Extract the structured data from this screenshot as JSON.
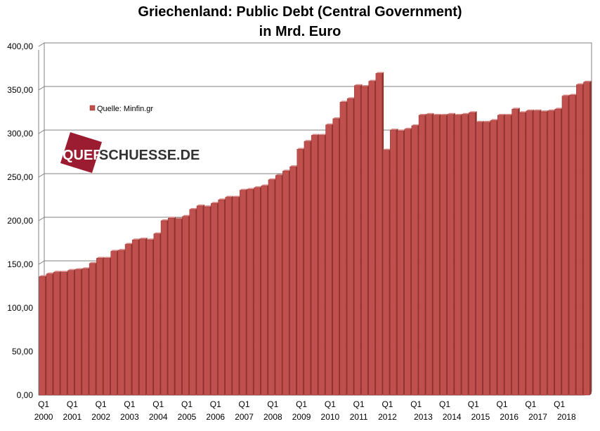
{
  "chart_data": {
    "type": "bar",
    "title": "Griechenland: Public Debt (Central Government)",
    "subtitle": "in Mrd. Euro",
    "xlabel": "",
    "ylabel": "",
    "ylim": [
      0,
      400
    ],
    "yticks": [
      "0,00",
      "50,00",
      "100,00",
      "150,00",
      "200,00",
      "250,00",
      "300,00",
      "350,00",
      "400,00"
    ],
    "grid": true,
    "legend_position": "top-left",
    "series": [
      {
        "name": "Quelle: Minfin.gr",
        "color": "#c0504d",
        "values": [
          136,
          139,
          141,
          141,
          143,
          144,
          145,
          151,
          157,
          157,
          165,
          166,
          173,
          178,
          179,
          178,
          185,
          200,
          203,
          202,
          205,
          213,
          217,
          216,
          220,
          224,
          227,
          227,
          235,
          236,
          238,
          240,
          247,
          252,
          257,
          262,
          282,
          291,
          298,
          298,
          310,
          317,
          336,
          340,
          355,
          354,
          360,
          369,
          281,
          304,
          303,
          305,
          309,
          321,
          322,
          321,
          321,
          322,
          321,
          322,
          324,
          313,
          313,
          315,
          321,
          321,
          328,
          324,
          326,
          326,
          325,
          326,
          328,
          343,
          344,
          356,
          359
        ]
      }
    ],
    "x_tick_quarters": [
      "Q1",
      "Q1",
      "Q1",
      "Q1",
      "Q1",
      "Q1",
      "Q1",
      "Q1",
      "Q1",
      "Q1",
      "Q1",
      "Q1",
      "Q1",
      "Q1",
      "Q1",
      "Q1",
      "Q1",
      "Q1",
      "Q1"
    ],
    "x_tick_years": [
      "2000",
      "2001",
      "2002",
      "2003",
      "2004",
      "2005",
      "2006",
      "2007",
      "2008",
      "2009",
      "2010",
      "2011",
      "2012",
      "2013",
      "2014",
      "2015",
      "2016",
      "2017",
      "2018"
    ],
    "x_year_tick_bar_index": [
      0,
      4,
      8,
      12,
      16,
      20,
      24,
      28,
      32,
      36,
      40,
      44,
      48,
      53,
      57,
      61,
      65,
      69,
      73
    ],
    "x_quarter_tick_bar_index": [
      0,
      4,
      8,
      12,
      16,
      20,
      24,
      28,
      32,
      36,
      40,
      44,
      48,
      52,
      56,
      60,
      64,
      68,
      72
    ]
  },
  "watermark": {
    "text_part1": "QUER",
    "text_part2": "SCHUESSE.DE"
  },
  "colors": {
    "bar": "#c0504d",
    "bar_edge": "#8b2a28",
    "logo_square": "#9b1b30",
    "logo_text": "#333333",
    "grid": "#808080"
  }
}
